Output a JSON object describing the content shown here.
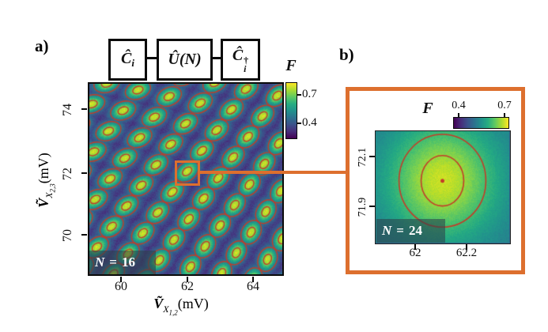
{
  "figure": {
    "panel_a_tag": "a)",
    "panel_b_tag": "b)",
    "accent_orange": "#dd6f2e",
    "contour_red": "#c43b28",
    "circuit": {
      "box1": {
        "main": "Ĉ",
        "sub": "i"
      },
      "box2": {
        "main": "Û(N)"
      },
      "box3": {
        "main": "Ĉ",
        "sub": "i",
        "sup": "†"
      }
    }
  },
  "chart_data": [
    {
      "type": "heatmap",
      "panel": "a",
      "xlabel_parts": {
        "base": "Ṽ",
        "sub": "X",
        "subsub": "1,2",
        "unit": "(mV)"
      },
      "ylabel_parts": {
        "base": "Ṽ",
        "sub": "X",
        "subsub": "2,3",
        "unit": "(mV)"
      },
      "xlim": [
        59.02,
        64.9
      ],
      "ylim": [
        68.72,
        74.83
      ],
      "xticks": [
        60,
        62,
        64
      ],
      "xticklabels": [
        "60",
        "62",
        "64"
      ],
      "yticks": [
        70,
        72,
        74
      ],
      "yticklabels": [
        "70",
        "72",
        "74"
      ],
      "colorbar": {
        "label": "F",
        "ticks": [
          0.7,
          0.4
        ],
        "ticklabels": [
          "0.7",
          "0.4"
        ],
        "orientation": "vertical",
        "colormap": "viridis"
      },
      "annotation": {
        "var": "N",
        "eq": "=",
        "value": "16"
      },
      "field": {
        "description": "Fidelity F map vs two virtual gate voltages: oblique lattice of anisotropic Gaussian peaks (bright, F~0.75) on dark background (F~0.35); each peak ringed by two red contour ellipses whose tilt rotates from ~15 deg (top-left) to ~75 deg (bottom-right)",
        "lattice_origin": [
          62.0,
          72.02
        ],
        "lattice_vector_1": [
          0.95,
          -0.21
        ],
        "lattice_vector_2": [
          -0.45,
          -0.66
        ],
        "sigma_major": 0.28,
        "sigma_minor": 0.19,
        "tilt_deg_min": 15,
        "tilt_deg_max": 75,
        "contour_rings": [
          [
            0.4,
            0.285
          ],
          [
            0.165,
            0.115
          ]
        ],
        "peak_level": 0.93,
        "background_level": 0.13,
        "noise": 0.09
      },
      "highlight_box": {
        "x": [
          61.65,
          62.4
        ],
        "y": [
          71.56,
          72.34
        ]
      }
    },
    {
      "type": "heatmap",
      "panel": "b",
      "xlim": [
        61.85,
        62.37
      ],
      "ylim": [
        71.75,
        72.2
      ],
      "xticks": [
        62,
        62.2
      ],
      "xticklabels": [
        "62",
        "62.2"
      ],
      "yticks": [
        71.9,
        72.1
      ],
      "yticklabels": [
        "71.9",
        "72.1"
      ],
      "colorbar": {
        "label": "F",
        "ticks": [
          0.4,
          0.7
        ],
        "ticklabels": [
          "0.4",
          "0.7"
        ],
        "orientation": "horizontal",
        "colormap": "viridis"
      },
      "annotation": {
        "var": "N",
        "eq": "=",
        "value": "24"
      },
      "field": {
        "description": "Zoom on one fidelity peak: single Gaussian bright spot with two red contour ellipses and a red center dot",
        "center": [
          62.11,
          72.0
        ],
        "sigma": [
          0.155,
          0.17
        ],
        "peak_level": 0.92,
        "background_level": 0.4,
        "noise": 0.06,
        "contour_ellipses": [
          {
            "rx": 0.083,
            "ry": 0.102
          },
          {
            "rx": 0.169,
            "ry": 0.187
          }
        ],
        "center_dot": true
      }
    }
  ]
}
